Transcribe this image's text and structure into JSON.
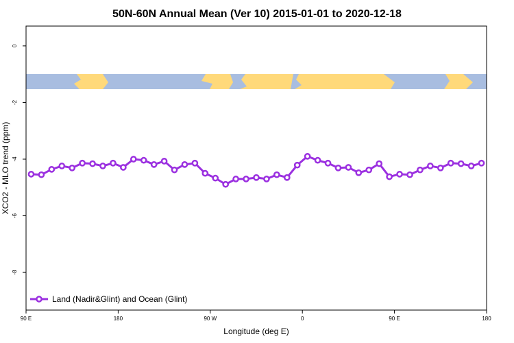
{
  "chart_data": {
    "type": "line",
    "title": "50N-60N Annual Mean (Ver 10)   2015-01-01 to 2020-12-18",
    "x_label": "Longitude (deg E)",
    "y_label": "XCO2 - MLO trend (ppm)",
    "x": [
      95,
      105,
      115,
      125,
      135,
      145,
      155,
      165,
      175,
      185,
      195,
      205,
      215,
      225,
      235,
      245,
      255,
      265,
      275,
      285,
      295,
      305,
      315,
      325,
      335,
      345,
      355,
      365,
      375,
      385,
      395,
      405,
      415,
      425,
      435,
      445,
      455,
      465,
      475,
      485,
      495,
      505,
      515,
      525,
      535
    ],
    "series": [
      {
        "name": "Land (Nadir&Glint) and Ocean (Glint)",
        "color": "#9b30e0",
        "values": [
          -4.53,
          -4.55,
          -4.36,
          -4.24,
          -4.31,
          -4.14,
          -4.16,
          -4.24,
          -4.14,
          -4.29,
          -4.0,
          -4.04,
          -4.19,
          -4.07,
          -4.38,
          -4.19,
          -4.14,
          -4.5,
          -4.67,
          -4.89,
          -4.7,
          -4.7,
          -4.65,
          -4.7,
          -4.55,
          -4.65,
          -4.21,
          -3.9,
          -4.04,
          -4.14,
          -4.31,
          -4.29,
          -4.48,
          -4.38,
          -4.16,
          -4.62,
          -4.53,
          -4.55,
          -4.38,
          -4.24,
          -4.31,
          -4.14,
          -4.16,
          -4.24,
          -4.14
        ]
      }
    ],
    "xlim": [
      90,
      540
    ],
    "xticks": [
      {
        "value": 90,
        "label": "90 E"
      },
      {
        "value": 180,
        "label": "180"
      },
      {
        "value": 270,
        "label": "90 W"
      },
      {
        "value": 360,
        "label": "0"
      },
      {
        "value": 450,
        "label": "90 E"
      },
      {
        "value": 540,
        "label": "180"
      }
    ],
    "ylim": [
      -9.33,
      0.7
    ],
    "yticks": [
      0,
      -2,
      -4,
      -6,
      -8
    ],
    "legend": "bottom left"
  }
}
